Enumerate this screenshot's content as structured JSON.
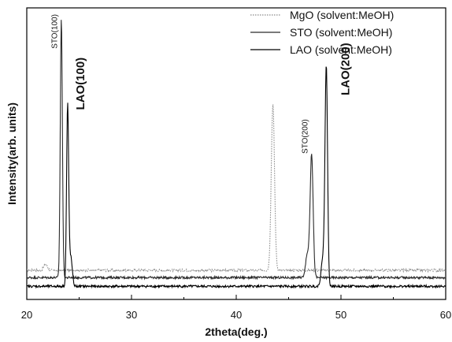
{
  "chart_data": {
    "type": "line",
    "title": "",
    "xlabel": "2theta(deg.)",
    "ylabel": "Intensity(arb. units)",
    "xlim": [
      20,
      60
    ],
    "xticks": [
      20,
      30,
      40,
      50,
      60
    ],
    "ylim": [
      0,
      1
    ],
    "yticks_labeled": false,
    "grid": false,
    "legend_position": "top-right",
    "series": [
      {
        "name": "MgO (solvent:MeOH)",
        "color": "#8a8a8a",
        "style": "dotted",
        "baseline": 0.1,
        "peaks": [
          {
            "x": 21.8,
            "height": 0.02,
            "width": 0.25
          },
          {
            "x": 43.5,
            "height": 0.57,
            "width": 0.22
          }
        ]
      },
      {
        "name": "STO (solvent:MeOH)",
        "color": "#2a2a2a",
        "style": "solid",
        "baseline": 0.075,
        "peaks": [
          {
            "x": 23.3,
            "height": 0.89,
            "width": 0.14
          },
          {
            "x": 47.2,
            "height": 0.42,
            "width": 0.2
          },
          {
            "x": 46.8,
            "height": 0.08,
            "width": 0.25
          }
        ]
      },
      {
        "name": "LAO (solvent:MeOH)",
        "color": "#000000",
        "style": "solid",
        "baseline": 0.045,
        "peaks": [
          {
            "x": 23.9,
            "height": 0.62,
            "width": 0.14
          },
          {
            "x": 24.2,
            "height": 0.1,
            "width": 0.2
          },
          {
            "x": 48.6,
            "height": 0.74,
            "width": 0.17
          },
          {
            "x": 48.3,
            "height": 0.1,
            "width": 0.25
          }
        ]
      }
    ],
    "annotations": [
      {
        "text": "STO(100)",
        "x": 22.9,
        "y": 0.86,
        "size": "small"
      },
      {
        "text": "LAO(100)",
        "x": 25.5,
        "y": 0.65,
        "size": "big"
      },
      {
        "text": "STO(200)",
        "x": 46.8,
        "y": 0.5,
        "size": "small"
      },
      {
        "text": "LAO(200)",
        "x": 50.8,
        "y": 0.7,
        "size": "big"
      }
    ]
  }
}
